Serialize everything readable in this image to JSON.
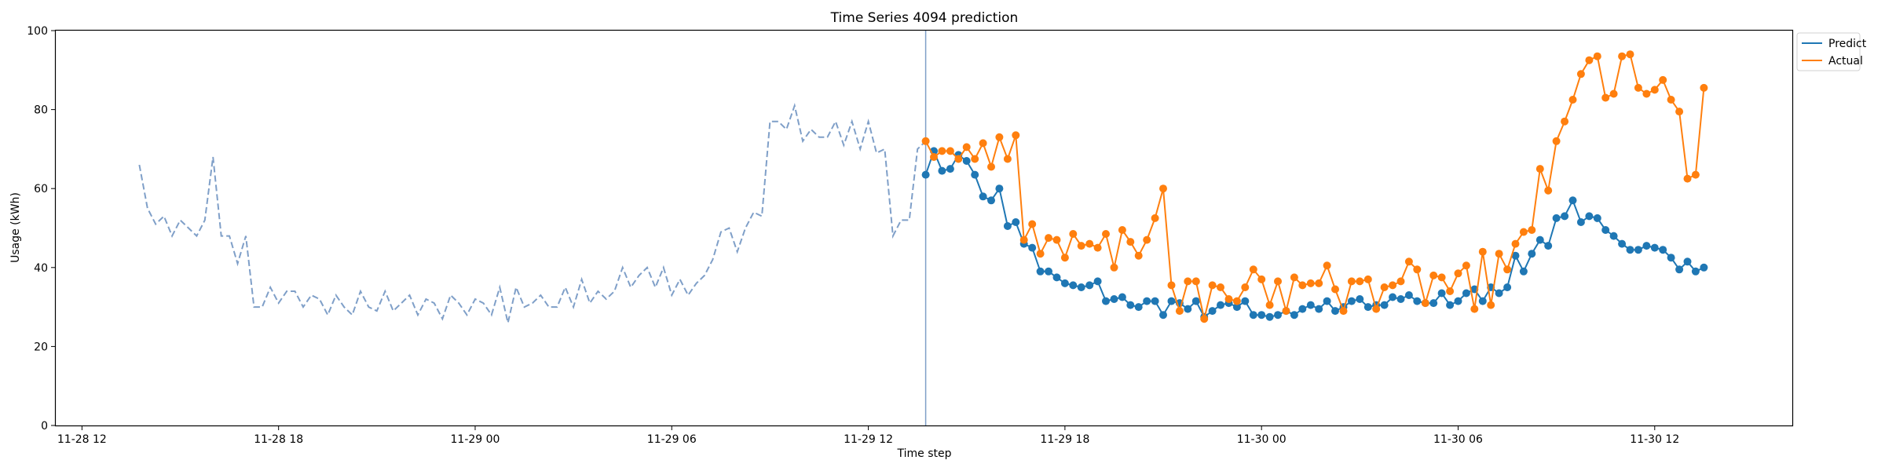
{
  "chart_data": {
    "type": "line",
    "title": "Time Series 4094 prediction",
    "xlabel": "Time step",
    "ylabel": "Usage (kWh)",
    "ylim": [
      0,
      100
    ],
    "yticks": [
      "0",
      "20",
      "40",
      "60",
      "80",
      "100"
    ],
    "xlim": [
      "2023-11-28 11:12",
      "2023-11-30 16:12"
    ],
    "xticks": [
      {
        "t": "2023-11-28 12:00",
        "label": "11-28 12"
      },
      {
        "t": "2023-11-28 18:00",
        "label": "11-28 18"
      },
      {
        "t": "2023-11-29 00:00",
        "label": "11-29 00"
      },
      {
        "t": "2023-11-29 06:00",
        "label": "11-29 06"
      },
      {
        "t": "2023-11-29 12:00",
        "label": "11-29 12"
      },
      {
        "t": "2023-11-29 18:00",
        "label": "11-29 18"
      },
      {
        "t": "2023-11-30 00:00",
        "label": "11-30 00"
      },
      {
        "t": "2023-11-30 06:00",
        "label": "11-30 06"
      },
      {
        "t": "2023-11-30 12:00",
        "label": "11-30 12"
      }
    ],
    "legend_position": "upper right, outside plot",
    "grid": false,
    "split_line_at": "2023-11-29 13:45",
    "colors": {
      "history": "#7f9fc8",
      "predict": "#1f77b4",
      "actual": "#ff7f0e",
      "split": "#7f9fc8"
    },
    "history": {
      "start": "2023-11-28 13:45",
      "step_minutes": 15,
      "values": [
        66,
        55,
        51,
        53,
        48,
        52,
        50,
        48,
        52,
        68,
        48,
        48,
        41,
        48,
        30,
        30,
        35,
        31,
        34,
        34,
        30,
        33,
        32,
        28,
        33,
        30,
        28,
        34,
        30,
        29,
        34,
        29,
        31,
        33,
        28,
        32,
        31,
        27,
        33,
        31,
        28,
        32,
        31,
        28,
        35,
        26,
        35,
        30,
        31,
        33,
        30,
        30,
        35,
        30,
        37,
        31,
        34,
        32,
        34,
        40,
        35,
        38,
        40,
        35,
        40,
        33,
        37,
        33,
        36,
        38,
        42,
        49,
        50,
        44,
        50,
        54,
        53,
        77,
        77,
        75,
        81,
        72,
        75,
        73,
        73,
        77,
        71,
        77,
        70,
        77,
        69,
        70,
        48,
        52,
        52,
        70,
        72
      ]
    },
    "series": [
      {
        "name": "Predict",
        "start": "2023-11-29 13:45",
        "step_minutes": 15,
        "values": [
          63.5,
          69.5,
          64.5,
          65,
          68.5,
          67,
          63.5,
          58,
          57,
          60,
          50.5,
          51.5,
          46,
          45,
          39,
          39,
          37.5,
          36,
          35.5,
          35,
          35.5,
          36.5,
          31.5,
          32,
          32.5,
          30.5,
          30,
          31.5,
          31.5,
          28,
          31.5,
          31,
          29.5,
          31.5,
          27.5,
          29,
          30.5,
          31,
          30,
          31.5,
          28,
          28,
          27.5,
          28,
          29,
          28,
          29.5,
          30.5,
          29.5,
          31.5,
          29,
          30,
          31.5,
          32,
          30,
          30.5,
          30.5,
          32.5,
          32,
          33,
          31.5,
          31,
          31,
          33.5,
          30.5,
          31.5,
          33.5,
          34.5,
          31.5,
          35,
          33.5,
          35,
          43,
          39,
          43.5,
          47,
          45.5,
          52.5,
          53,
          57,
          51.5,
          53,
          52.5,
          49.5,
          48,
          46,
          44.5,
          44.5,
          45.5,
          45,
          44.5,
          42.5,
          39.5,
          41.5,
          39,
          40
        ]
      },
      {
        "name": "Actual",
        "start": "2023-11-29 13:45",
        "step_minutes": 15,
        "values": [
          72,
          68,
          69.5,
          69.5,
          67.5,
          70.5,
          67.5,
          71.5,
          65.5,
          73,
          67.5,
          73.5,
          47,
          51,
          43.5,
          47.5,
          47,
          42.5,
          48.5,
          45.5,
          46,
          45,
          48.5,
          40,
          49.5,
          46.5,
          43,
          47,
          52.5,
          60,
          35.5,
          29,
          36.5,
          36.5,
          27,
          35.5,
          35,
          32,
          31.5,
          35,
          39.5,
          37,
          30.5,
          36.5,
          29,
          37.5,
          35.5,
          36,
          36,
          40.5,
          34.5,
          29,
          36.5,
          36.5,
          37,
          29.5,
          35,
          35.5,
          36.5,
          41.5,
          39.5,
          31,
          38,
          37.5,
          34,
          38.5,
          40.5,
          29.5,
          44,
          30.5,
          43.5,
          39.5,
          46,
          49,
          49.5,
          65,
          59.5,
          72,
          77,
          82.5,
          89,
          92.5,
          93.5,
          83,
          84,
          93.5,
          94,
          85.5,
          84,
          85,
          87.5,
          82.5,
          79.5,
          62.5,
          63.5,
          85.5
        ]
      }
    ]
  }
}
